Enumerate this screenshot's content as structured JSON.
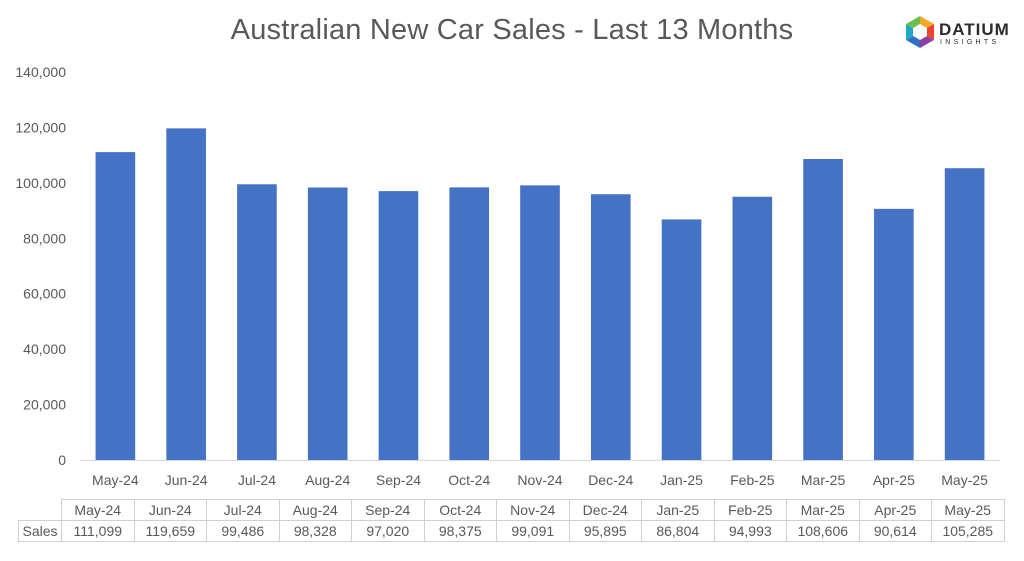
{
  "chart_data": {
    "type": "bar",
    "title": "Australian New Car Sales  - Last 13 Months",
    "categories": [
      "May-24",
      "Jun-24",
      "Jul-24",
      "Aug-24",
      "Sep-24",
      "Oct-24",
      "Nov-24",
      "Dec-24",
      "Jan-25",
      "Feb-25",
      "Mar-25",
      "Apr-25",
      "May-25"
    ],
    "series": [
      {
        "name": "Sales",
        "values": [
          111099,
          119659,
          99486,
          98328,
          97020,
          98375,
          99091,
          95895,
          86804,
          94993,
          108606,
          90614,
          105285
        ]
      }
    ],
    "value_labels": [
      "111,099",
      "119,659",
      "99,486",
      "98,328",
      "97,020",
      "98,375",
      "99,091",
      "95,895",
      "86,804",
      "94,993",
      "108,606",
      "90,614",
      "105,285"
    ],
    "ylim": [
      0,
      140000
    ],
    "yticks": [
      "0",
      "20,000",
      "40,000",
      "60,000",
      "80,000",
      "100,000",
      "120,000",
      "140,000"
    ],
    "grid": false,
    "legend": "none",
    "data_table": true,
    "bar_color": "#4472C4"
  },
  "logo": {
    "word": "DATIUM",
    "sub": "INSIGHTS"
  }
}
